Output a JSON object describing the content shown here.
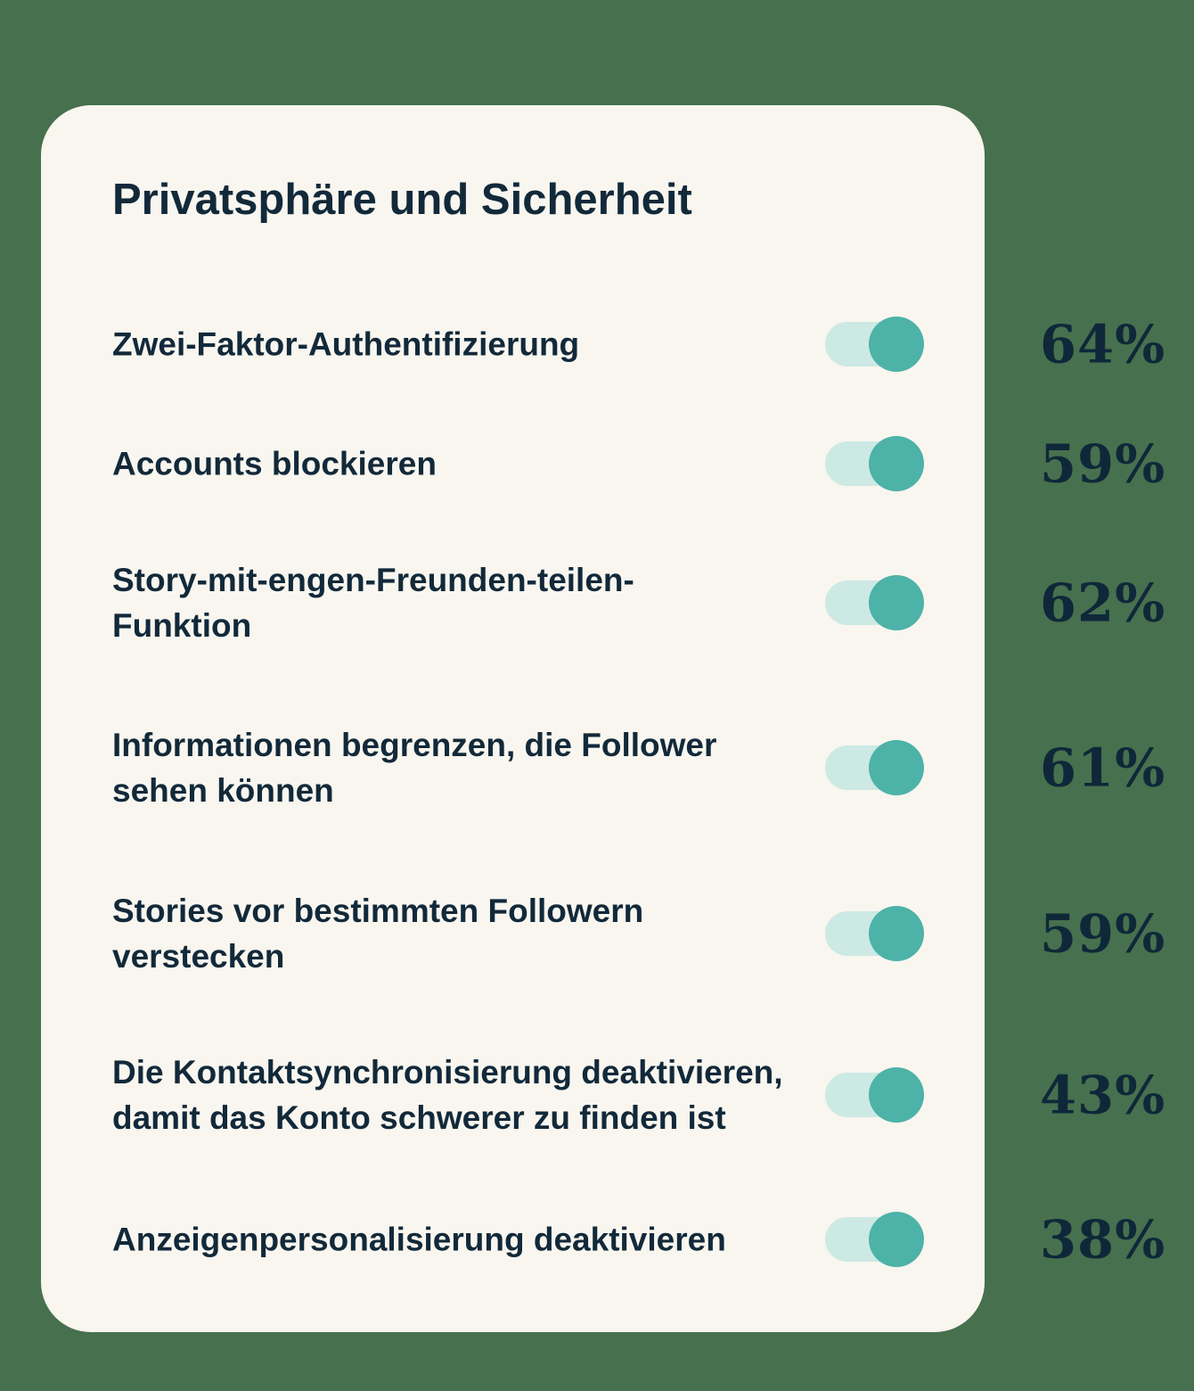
{
  "title": "Privatsphäre und Sicherheit",
  "colors": {
    "background": "#47704e",
    "card": "#f8f6ef",
    "text_navy": "#12293a",
    "toggle_track": "#cde9e4",
    "toggle_knob": "#4db2a8"
  },
  "rows": [
    {
      "label": "Zwei-Faktor-Authentifizierung",
      "value": "64%",
      "toggle_state": "on"
    },
    {
      "label": "Accounts blockieren",
      "value": "59%",
      "toggle_state": "on"
    },
    {
      "label": "Story-mit-engen-Freunden-teilen-\nFunktion",
      "value": "62%",
      "toggle_state": "on"
    },
    {
      "label": "Informationen begrenzen, die Follower\nsehen können",
      "value": "61%",
      "toggle_state": "on"
    },
    {
      "label": "Stories vor bestimmten Followern\nverstecken",
      "value": "59%",
      "toggle_state": "on"
    },
    {
      "label": "Die Kontaktsynchronisierung deaktivieren,\ndamit das Konto schwerer zu finden ist",
      "value": "43%",
      "toggle_state": "on"
    },
    {
      "label": "Anzeigenpersonalisierung deaktivieren",
      "value": "38%",
      "toggle_state": "on"
    }
  ],
  "chart_data": {
    "type": "table",
    "title": "Privatsphäre und Sicherheit",
    "categories": [
      "Zwei-Faktor-Authentifizierung",
      "Accounts blockieren",
      "Story-mit-engen-Freunden-teilen-Funktion",
      "Informationen begrenzen, die Follower sehen können",
      "Stories vor bestimmten Followern verstecken",
      "Die Kontaktsynchronisierung deaktivieren, damit das Konto schwerer zu finden ist",
      "Anzeigenpersonalisierung deaktivieren"
    ],
    "values": [
      64,
      59,
      62,
      61,
      59,
      43,
      38
    ],
    "unit": "%",
    "value_position": "right-of-card",
    "legend": "none",
    "grid": "off"
  }
}
